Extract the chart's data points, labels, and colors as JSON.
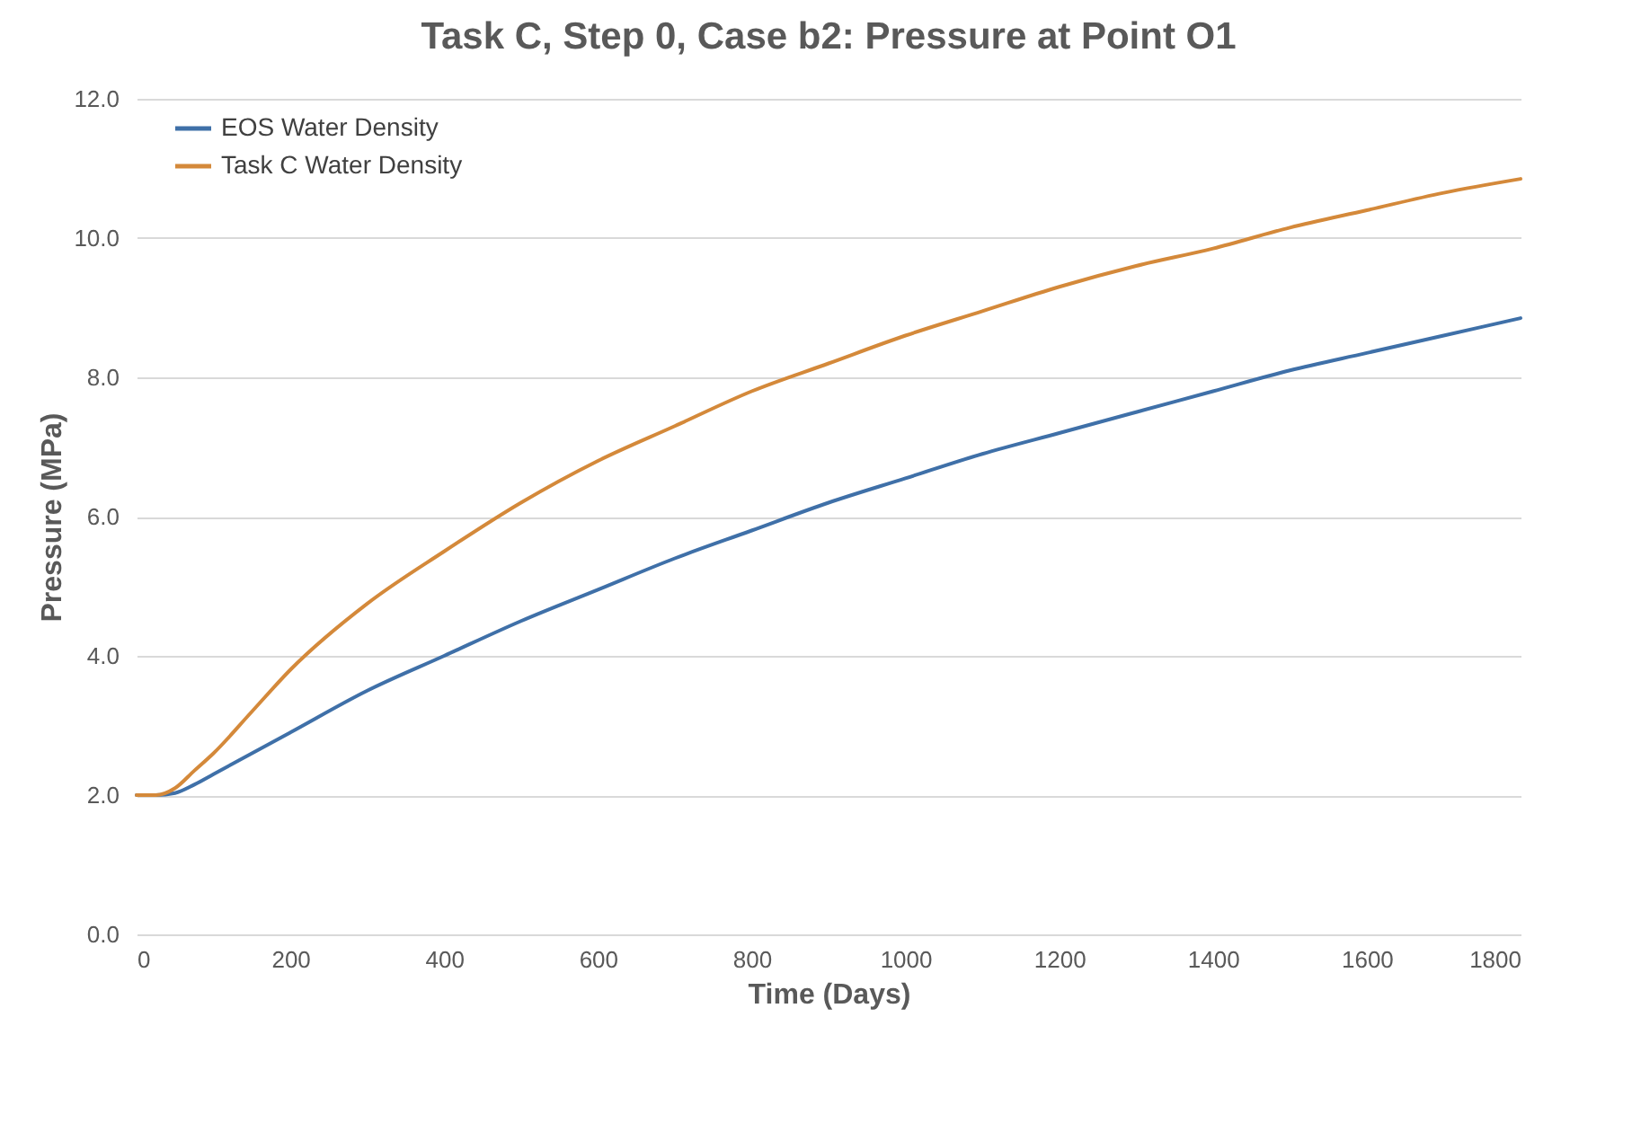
{
  "chart_data": {
    "type": "line",
    "title": "Task C, Step 0, Case b2: Pressure at Point O1",
    "xlabel": "Time (Days)",
    "ylabel": "Pressure (MPa)",
    "x": [
      0,
      25,
      50,
      75,
      100,
      150,
      200,
      300,
      400,
      500,
      600,
      700,
      800,
      900,
      1000,
      1100,
      1200,
      1300,
      1400,
      1500,
      1600,
      1700,
      1800
    ],
    "series": [
      {
        "name": "EOS Water Density",
        "color": "#3f70a8",
        "values": [
          2.0,
          2.0,
          2.03,
          2.15,
          2.3,
          2.6,
          2.9,
          3.5,
          4.0,
          4.5,
          4.95,
          5.4,
          5.8,
          6.2,
          6.55,
          6.9,
          7.2,
          7.5,
          7.8,
          8.1,
          8.35,
          8.6,
          8.85
        ]
      },
      {
        "name": "Task C Water Density",
        "color": "#d4893a",
        "values": [
          2.0,
          2.0,
          2.1,
          2.35,
          2.6,
          3.2,
          3.8,
          4.75,
          5.5,
          6.2,
          6.8,
          7.3,
          7.8,
          8.2,
          8.6,
          8.95,
          9.3,
          9.6,
          9.85,
          10.15,
          10.4,
          10.65,
          10.85
        ]
      }
    ],
    "xlim": [
      0,
      1800
    ],
    "xticks": [
      0,
      200,
      400,
      600,
      800,
      1000,
      1200,
      1400,
      1600,
      1800
    ],
    "ylim": [
      0,
      12
    ],
    "yticks": [
      {
        "value": 0,
        "label": "0.0"
      },
      {
        "value": 2,
        "label": "2.0"
      },
      {
        "value": 4,
        "label": "4.0"
      },
      {
        "value": 6,
        "label": "6.0"
      },
      {
        "value": 8,
        "label": "8.0"
      },
      {
        "value": 10,
        "label": "10.0"
      },
      {
        "value": 12,
        "label": "12.0"
      }
    ],
    "grid": "y",
    "legend": "top left",
    "marker": "none",
    "line_style": "solid"
  }
}
